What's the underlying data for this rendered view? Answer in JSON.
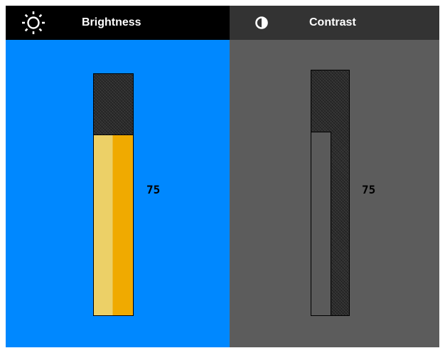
{
  "brightness": {
    "label": "Brightness",
    "icon": "sun-icon",
    "value_text": "75",
    "level": 0.75,
    "colors": {
      "tab": "#000000",
      "panel": "#0088ff",
      "fill_light": "#ecd067",
      "fill_dark": "#f0aa00"
    }
  },
  "contrast": {
    "label": "Contrast",
    "icon": "contrast-icon",
    "value_text": "75",
    "level": 0.75,
    "colors": {
      "tab": "#333333",
      "panel": "#5c5c5c",
      "fill": "#5a5a5a"
    }
  }
}
